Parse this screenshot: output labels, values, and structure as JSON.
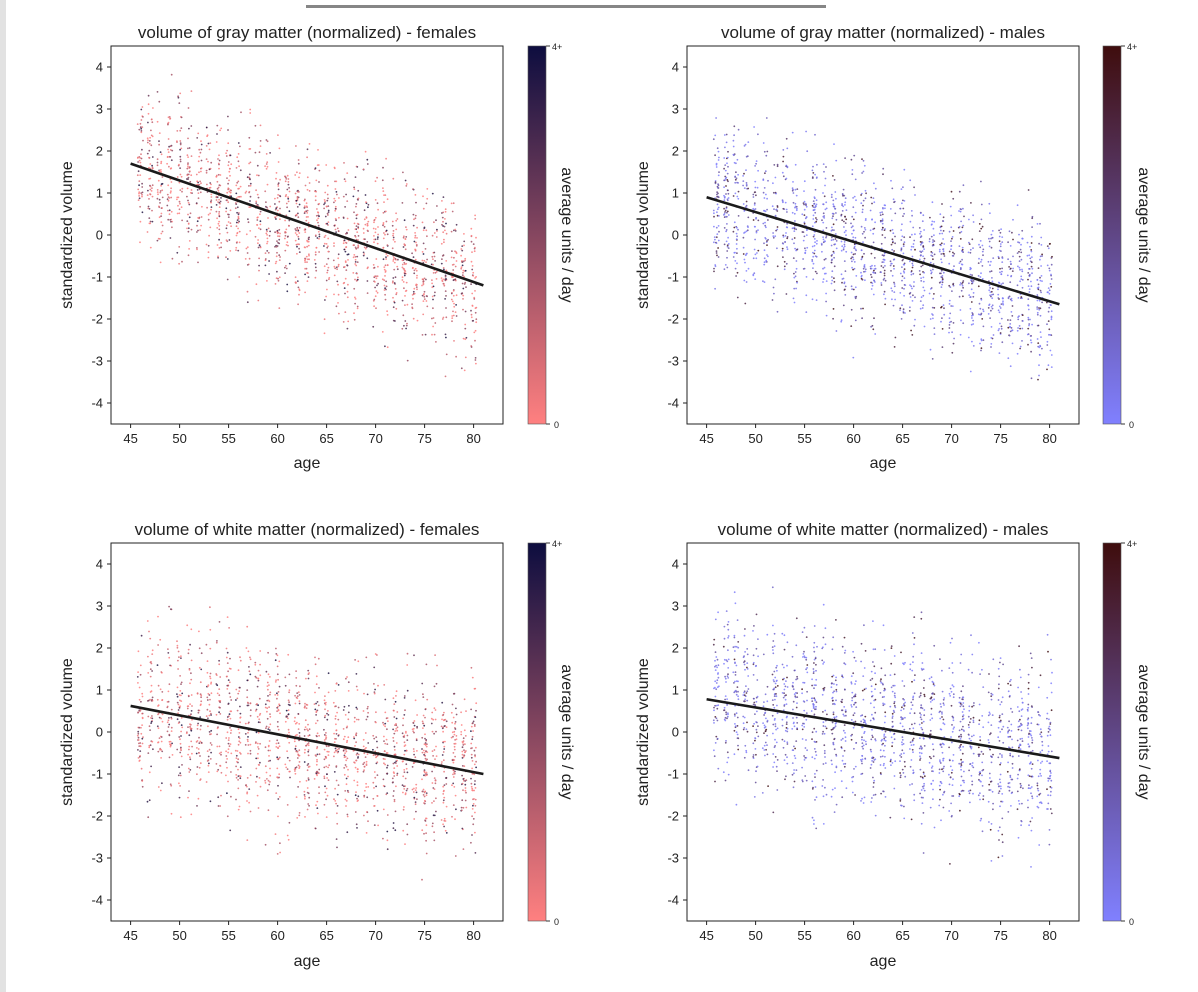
{
  "colors": {
    "female_low": "#ff8080",
    "female_high": "#0d0d3f",
    "male_low": "#8080ff",
    "male_high": "#3f0d0d",
    "trend": "#1a1a1a"
  },
  "chart_data": [
    {
      "type": "scatter",
      "title": "volume of gray matter (normalized) - females",
      "xlabel": "age",
      "ylabel": "standardized volume",
      "xlim": [
        43,
        83
      ],
      "ylim": [
        -4.5,
        4.5
      ],
      "xticks": [
        45,
        50,
        55,
        60,
        65,
        70,
        75,
        80
      ],
      "yticks": [
        -4,
        -3,
        -2,
        -1,
        0,
        1,
        2,
        3,
        4
      ],
      "scatter_center": {
        "x": [
          45,
          81
        ],
        "y": [
          1.7,
          -1.2
        ]
      },
      "scatter_spread": 0.9,
      "point_color_low": "#ff8080",
      "point_color_high": "#0d0d3f",
      "trend_line": {
        "x": [
          45,
          81
        ],
        "y": [
          1.7,
          -1.2
        ]
      },
      "colorbar": {
        "label": "average units / day",
        "tick_low": "0",
        "tick_high": "4+",
        "color_low": "#ff8080",
        "color_high": "#0d0d3f"
      }
    },
    {
      "type": "scatter",
      "title": "volume of gray matter (normalized) - males",
      "xlabel": "age",
      "ylabel": "standardized volume",
      "xlim": [
        43,
        83
      ],
      "ylim": [
        -4.5,
        4.5
      ],
      "xticks": [
        45,
        50,
        55,
        60,
        65,
        70,
        75,
        80
      ],
      "yticks": [
        -4,
        -3,
        -2,
        -1,
        0,
        1,
        2,
        3,
        4
      ],
      "scatter_center": {
        "x": [
          45,
          81
        ],
        "y": [
          0.9,
          -1.65
        ]
      },
      "scatter_spread": 0.9,
      "point_color_low": "#8080ff",
      "point_color_high": "#3f0d0d",
      "trend_line": {
        "x": [
          45,
          81
        ],
        "y": [
          0.9,
          -1.65
        ]
      },
      "colorbar": {
        "label": "average units / day",
        "tick_low": "0",
        "tick_high": "4+",
        "color_low": "#8080ff",
        "color_high": "#3f0d0d"
      }
    },
    {
      "type": "scatter",
      "title": "volume of white matter (normalized) - females",
      "xlabel": "age",
      "ylabel": "standardized volume",
      "xlim": [
        43,
        83
      ],
      "ylim": [
        -4.5,
        4.5
      ],
      "xticks": [
        45,
        50,
        55,
        60,
        65,
        70,
        75,
        80
      ],
      "yticks": [
        -4,
        -3,
        -2,
        -1,
        0,
        1,
        2,
        3,
        4
      ],
      "scatter_center": {
        "x": [
          45,
          81
        ],
        "y": [
          0.62,
          -1.0
        ]
      },
      "scatter_spread": 1.0,
      "point_color_low": "#ff8080",
      "point_color_high": "#0d0d3f",
      "trend_line": {
        "x": [
          45,
          81
        ],
        "y": [
          0.62,
          -1.0
        ]
      },
      "colorbar": {
        "label": "average units / day",
        "tick_low": "0",
        "tick_high": "4+",
        "color_low": "#ff8080",
        "color_high": "#0d0d3f"
      }
    },
    {
      "type": "scatter",
      "title": "volume of white matter (normalized) - males",
      "xlabel": "age",
      "ylabel": "standardized volume",
      "xlim": [
        43,
        83
      ],
      "ylim": [
        -4.5,
        4.5
      ],
      "xticks": [
        45,
        50,
        55,
        60,
        65,
        70,
        75,
        80
      ],
      "yticks": [
        -4,
        -3,
        -2,
        -1,
        0,
        1,
        2,
        3,
        4
      ],
      "scatter_center": {
        "x": [
          45,
          81
        ],
        "y": [
          0.78,
          -0.62
        ]
      },
      "scatter_spread": 1.0,
      "point_color_low": "#8080ff",
      "point_color_high": "#3f0d0d",
      "trend_line": {
        "x": [
          45,
          81
        ],
        "y": [
          0.78,
          -0.62
        ]
      },
      "colorbar": {
        "label": "average units / day",
        "tick_low": "0",
        "tick_high": "4+",
        "color_low": "#8080ff",
        "color_high": "#3f0d0d"
      }
    }
  ]
}
